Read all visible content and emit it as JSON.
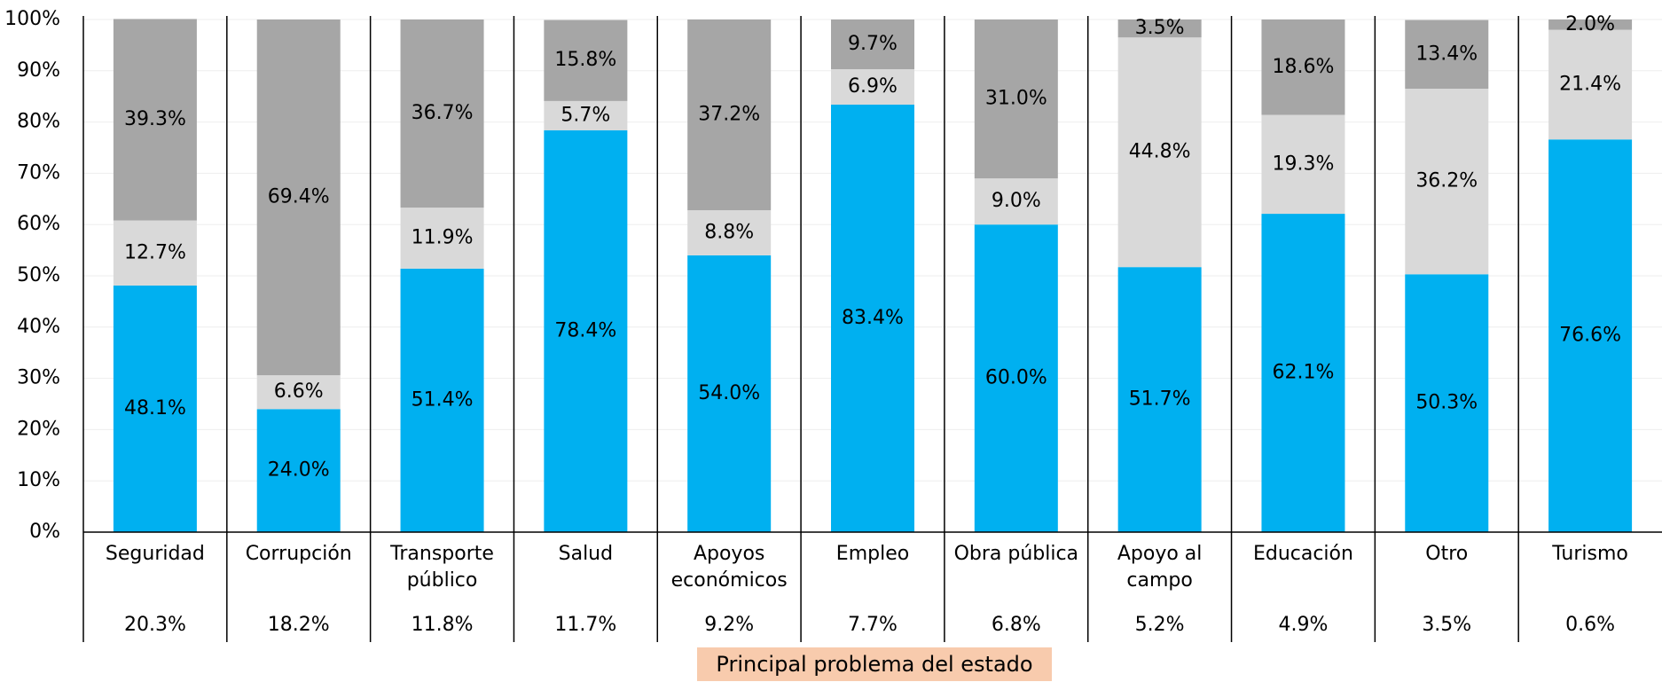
{
  "chart_data": {
    "type": "stacked_bar",
    "x_label": "Principal problema del estado",
    "categories": [
      "Seguridad",
      "Corrupción",
      "Transporte público",
      "Salud",
      "Apoyos económicos",
      "Empleo",
      "Obra pública",
      "Apoyo al campo",
      "Educación",
      "Otro",
      "Turismo"
    ],
    "category_shares": [
      "20.3%",
      "18.2%",
      "11.8%",
      "11.7%",
      "9.2%",
      "7.7%",
      "6.8%",
      "5.2%",
      "4.9%",
      "3.5%",
      "0.6%"
    ],
    "series": [
      {
        "color": "#00b0f0",
        "values": [
          48.1,
          24.0,
          51.4,
          78.4,
          54.0,
          83.4,
          60.0,
          51.7,
          62.1,
          50.3,
          76.6
        ],
        "value_labels": [
          "48.1%",
          "24.0%",
          "51.4%",
          "78.4%",
          "54.0%",
          "83.4%",
          "60.0%",
          "51.7%",
          "62.1%",
          "50.3%",
          "76.6%"
        ]
      },
      {
        "color": "#d9d9d9",
        "values": [
          12.7,
          6.6,
          11.9,
          5.7,
          8.8,
          6.9,
          9.0,
          44.8,
          19.3,
          36.2,
          21.4
        ],
        "value_labels": [
          "12.7%",
          "6.6%",
          "11.9%",
          "5.7%",
          "8.8%",
          "6.9%",
          "9.0%",
          "44.8%",
          "19.3%",
          "36.2%",
          "21.4%"
        ]
      },
      {
        "color": "#a6a6a6",
        "values": [
          39.3,
          69.4,
          36.7,
          15.8,
          37.2,
          9.7,
          31.0,
          3.5,
          18.6,
          13.4,
          2.0
        ],
        "value_labels": [
          "39.3%",
          "69.4%",
          "36.7%",
          "15.8%",
          "37.2%",
          "9.7%",
          "31.0%",
          "3.5%",
          "18.6%",
          "13.4%",
          "2.0%"
        ]
      }
    ],
    "ylim": [
      0,
      100
    ],
    "yticks": [
      {
        "value": 0,
        "label": "0%"
      },
      {
        "value": 10,
        "label": "10%"
      },
      {
        "value": 20,
        "label": "20%"
      },
      {
        "value": 30,
        "label": "30%"
      },
      {
        "value": 40,
        "label": "40%"
      },
      {
        "value": 50,
        "label": "50%"
      },
      {
        "value": 60,
        "label": "60%"
      },
      {
        "value": 70,
        "label": "70%"
      },
      {
        "value": 80,
        "label": "80%"
      },
      {
        "value": 90,
        "label": "90%"
      },
      {
        "value": 100,
        "label": "100%"
      }
    ],
    "grid": true
  }
}
